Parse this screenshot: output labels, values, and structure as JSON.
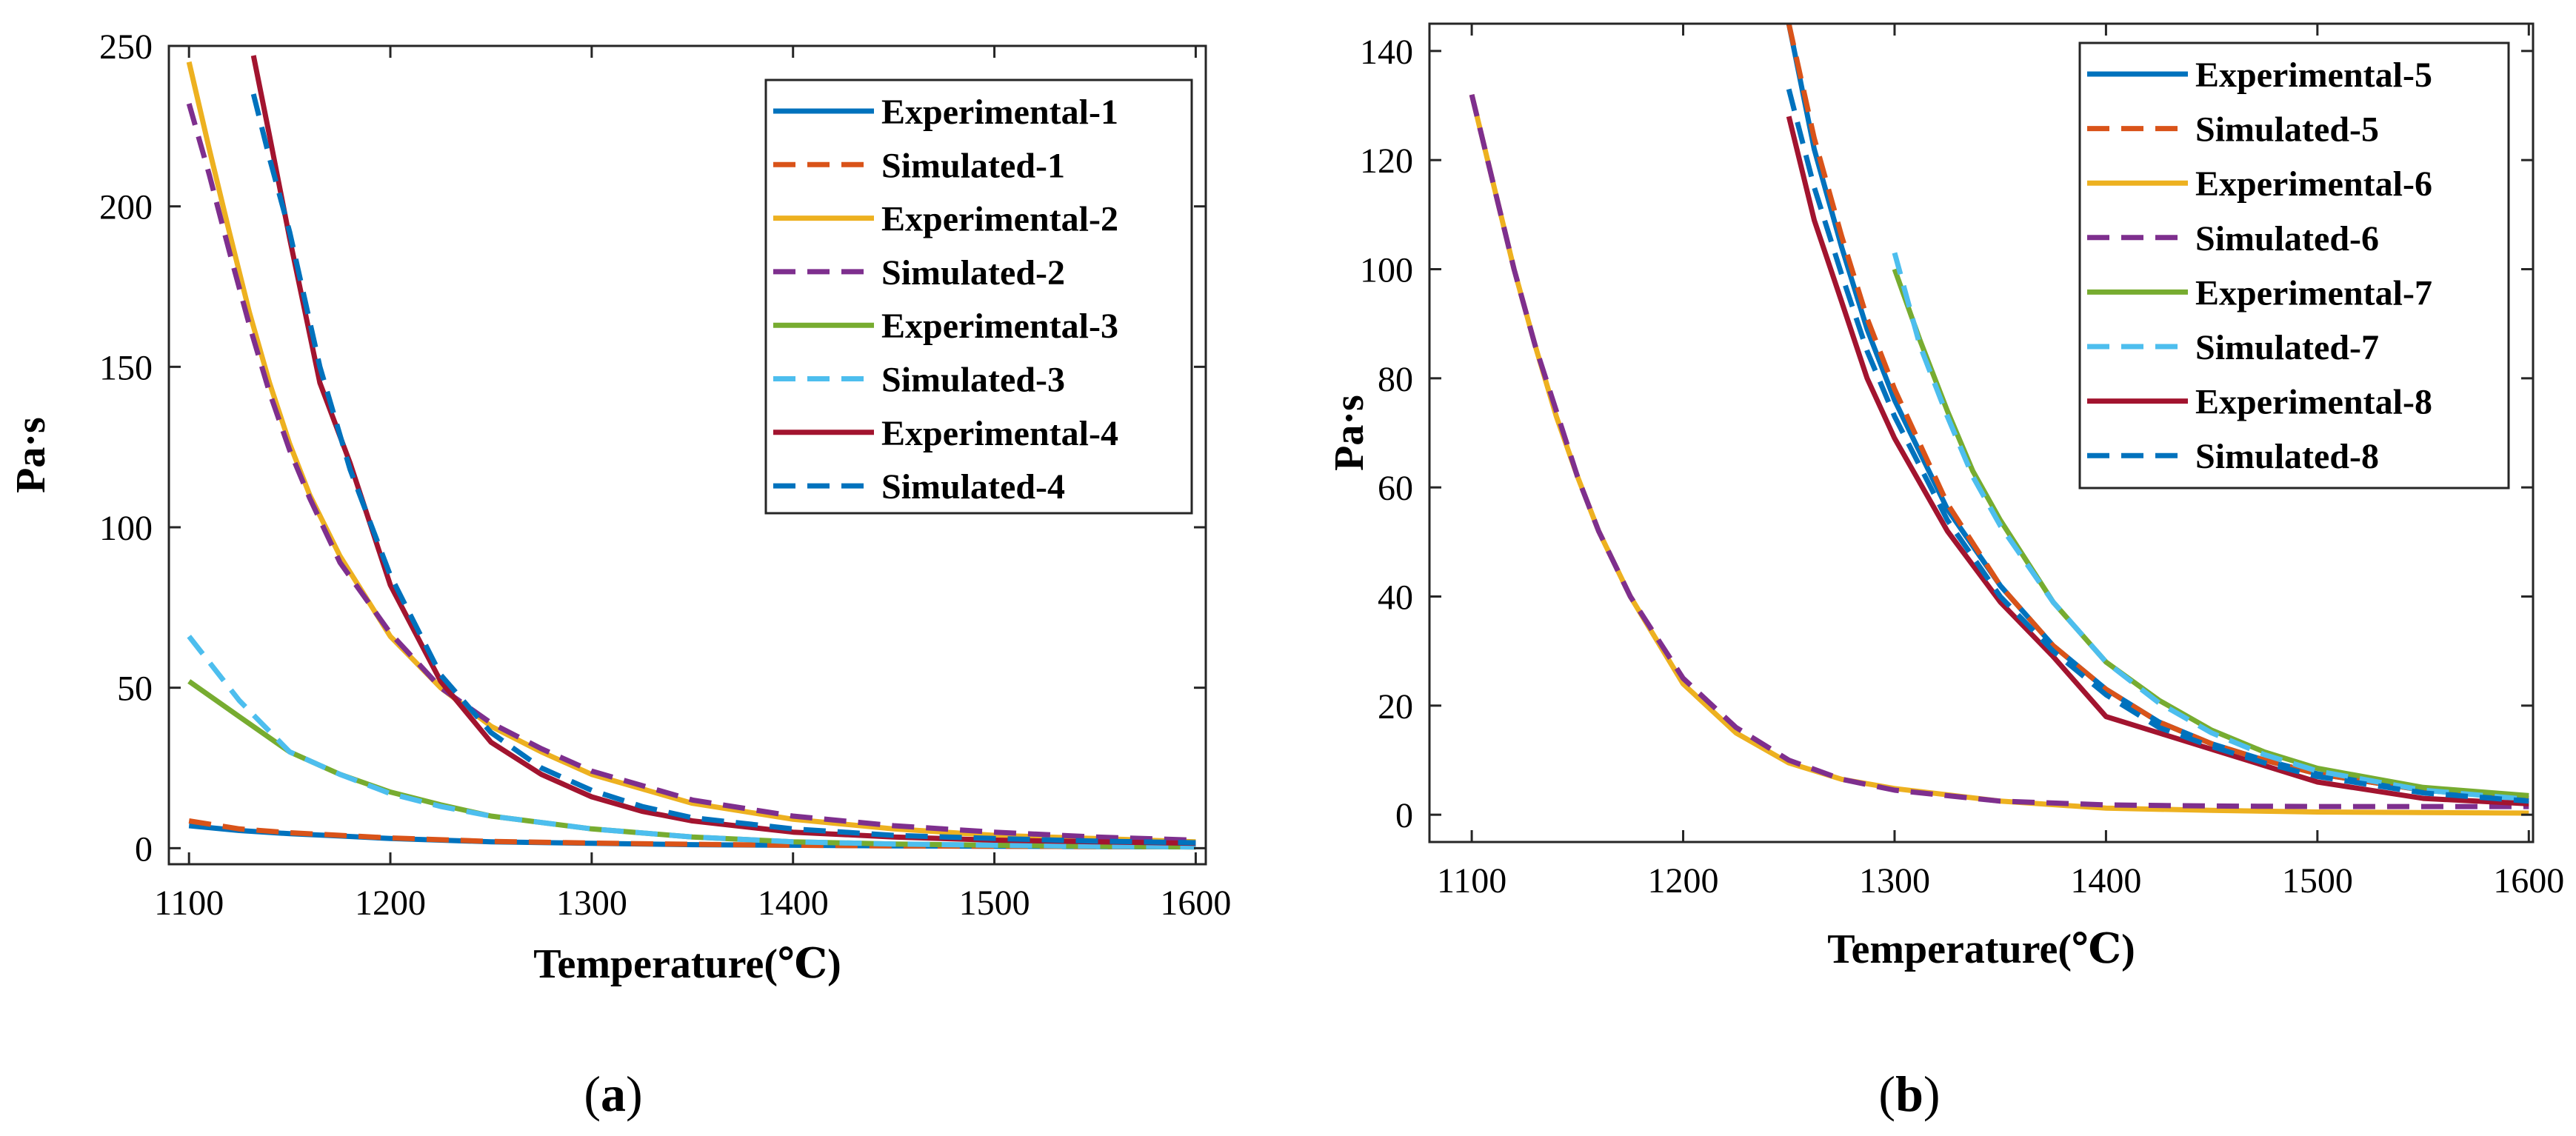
{
  "figure": {
    "panel_labels": [
      {
        "open": "(",
        "letter": "a",
        "close": ")"
      },
      {
        "open": "(",
        "letter": "b",
        "close": ")"
      }
    ]
  },
  "chart_data": [
    {
      "type": "line",
      "panel": "a",
      "title": "",
      "xlabel": "Temperature(℃)",
      "ylabel": "Pa·s",
      "xlim": [
        1090,
        1605
      ],
      "ylim": [
        -5,
        250
      ],
      "xticks": [
        1100,
        1200,
        1300,
        1400,
        1500,
        1600
      ],
      "yticks": [
        0,
        50,
        100,
        150,
        200,
        250
      ],
      "legend_position": "top-right",
      "series": [
        {
          "name": "Experimental-1",
          "color": "#0072BD",
          "dash": "solid",
          "x": [
            1100,
            1125,
            1150,
            1175,
            1200,
            1250,
            1300,
            1350,
            1400,
            1450,
            1500,
            1550,
            1600
          ],
          "y": [
            7,
            5.5,
            4.5,
            3.8,
            3,
            2,
            1.5,
            1.1,
            0.9,
            0.7,
            0.6,
            0.5,
            0.4
          ]
        },
        {
          "name": "Simulated-1",
          "color": "#D95319",
          "dash": "dash",
          "x": [
            1100,
            1125,
            1150,
            1175,
            1200,
            1250,
            1300,
            1350,
            1400,
            1450,
            1500,
            1550,
            1600
          ],
          "y": [
            8.5,
            6,
            4.8,
            4,
            3.2,
            2.1,
            1.6,
            1.2,
            0.9,
            0.7,
            0.6,
            0.5,
            0.4
          ]
        },
        {
          "name": "Experimental-2",
          "color": "#EDB120",
          "dash": "solid",
          "x": [
            1100,
            1110,
            1120,
            1130,
            1140,
            1150,
            1160,
            1175,
            1200,
            1225,
            1250,
            1275,
            1300,
            1350,
            1400,
            1450,
            1500,
            1550,
            1600
          ],
          "y": [
            245,
            218,
            192,
            167,
            145,
            126,
            110,
            91,
            66,
            50,
            38,
            30,
            23,
            14,
            9,
            6,
            4,
            3,
            2
          ]
        },
        {
          "name": "Simulated-2",
          "color": "#7E2F8E",
          "dash": "dash",
          "x": [
            1100,
            1110,
            1120,
            1130,
            1140,
            1150,
            1160,
            1175,
            1200,
            1225,
            1250,
            1275,
            1300,
            1350,
            1400,
            1450,
            1500,
            1550,
            1600
          ],
          "y": [
            232,
            210,
            186,
            163,
            142,
            124,
            109,
            89,
            67,
            50,
            39,
            31,
            24,
            15,
            10,
            7,
            5,
            3.5,
            2.5
          ]
        },
        {
          "name": "Experimental-3",
          "color": "#77AC30",
          "dash": "solid",
          "x": [
            1100,
            1125,
            1150,
            1175,
            1200,
            1225,
            1250,
            1300,
            1350,
            1400,
            1450,
            1500,
            1550,
            1600
          ],
          "y": [
            52,
            41,
            30,
            23,
            17.5,
            13.5,
            10,
            6,
            3.5,
            2,
            1.3,
            0.9,
            0.6,
            0.4
          ]
        },
        {
          "name": "Simulated-3",
          "color": "#4DBEEE",
          "dash": "dash",
          "x": [
            1100,
            1125,
            1150,
            1175,
            1200,
            1225,
            1250,
            1300,
            1350,
            1400,
            1450,
            1500,
            1550,
            1600
          ],
          "y": [
            66,
            46,
            30,
            23,
            17,
            13,
            10,
            6,
            3.5,
            2,
            1.3,
            0.9,
            0.6,
            0.4
          ]
        },
        {
          "name": "Experimental-4",
          "color": "#A2142F",
          "dash": "solid",
          "x": [
            1132,
            1140,
            1150,
            1165,
            1180,
            1200,
            1225,
            1250,
            1275,
            1300,
            1325,
            1350,
            1400,
            1450,
            1500,
            1550,
            1600
          ],
          "y": [
            247,
            222,
            190,
            145,
            120,
            82,
            52,
            33,
            23,
            16,
            11.5,
            8.5,
            5,
            3.5,
            2.5,
            2,
            1.5
          ]
        },
        {
          "name": "Simulated-4",
          "color": "#0072BD",
          "dash": "dash",
          "x": [
            1132,
            1140,
            1150,
            1165,
            1180,
            1200,
            1225,
            1250,
            1275,
            1300,
            1325,
            1350,
            1400,
            1450,
            1500,
            1550,
            1600
          ],
          "y": [
            235,
            215,
            192,
            150,
            118,
            85,
            54,
            36,
            25,
            18,
            13,
            9.5,
            6,
            4,
            3,
            2.2,
            1.7
          ]
        }
      ]
    },
    {
      "type": "line",
      "panel": "b",
      "title": "",
      "xlabel": "Temperature(℃)",
      "ylabel": "Pa·s",
      "xlim": [
        1080,
        1602
      ],
      "ylim": [
        -5,
        145
      ],
      "xticks": [
        1100,
        1200,
        1300,
        1400,
        1500,
        1600
      ],
      "yticks": [
        0,
        20,
        40,
        60,
        80,
        100,
        120,
        140
      ],
      "legend_position": "top-right",
      "series": [
        {
          "name": "Experimental-5",
          "color": "#0072BD",
          "dash": "solid",
          "x": [
            1250,
            1262,
            1275,
            1287,
            1300,
            1325,
            1350,
            1375,
            1400,
            1425,
            1450,
            1475,
            1500,
            1550,
            1600
          ],
          "y": [
            145,
            122,
            104,
            89,
            76,
            56,
            42,
            31,
            23,
            17,
            13,
            10,
            7.5,
            4.5,
            3
          ]
        },
        {
          "name": "Simulated-5",
          "color": "#D95319",
          "dash": "dash",
          "x": [
            1250,
            1262,
            1275,
            1287,
            1300,
            1325,
            1350,
            1375,
            1400,
            1425,
            1450,
            1475,
            1500,
            1550,
            1600
          ],
          "y": [
            145,
            124,
            106,
            91,
            78,
            57,
            42,
            31,
            23,
            17,
            13,
            10,
            7.5,
            4.5,
            3
          ]
        },
        {
          "name": "Experimental-6",
          "color": "#EDB120",
          "dash": "solid",
          "x": [
            1100,
            1110,
            1120,
            1130,
            1140,
            1150,
            1160,
            1175,
            1200,
            1225,
            1250,
            1275,
            1300,
            1350,
            1400,
            1450,
            1500,
            1550,
            1600
          ],
          "y": [
            132,
            116,
            100,
            86,
            73,
            62,
            52,
            40,
            24,
            15,
            9.5,
            6.5,
            4.8,
            2.5,
            1.2,
            0.8,
            0.5,
            0.4,
            0.3
          ]
        },
        {
          "name": "Simulated-6",
          "color": "#7E2F8E",
          "dash": "dash",
          "x": [
            1100,
            1110,
            1120,
            1130,
            1140,
            1150,
            1160,
            1175,
            1200,
            1225,
            1250,
            1275,
            1300,
            1350,
            1400,
            1450,
            1500,
            1550,
            1600
          ],
          "y": [
            132,
            116,
            100,
            86,
            74,
            62,
            52,
            40,
            25,
            16,
            10,
            6.5,
            4.5,
            2.5,
            1.8,
            1.6,
            1.5,
            1.5,
            1.5
          ]
        },
        {
          "name": "Experimental-7",
          "color": "#77AC30",
          "dash": "solid",
          "x": [
            1300,
            1312,
            1325,
            1337,
            1350,
            1375,
            1400,
            1425,
            1450,
            1475,
            1500,
            1550,
            1600
          ],
          "y": [
            100,
            87,
            74,
            63,
            54,
            39,
            28,
            21,
            15.5,
            11.5,
            8.5,
            5,
            3.5
          ]
        },
        {
          "name": "Simulated-7",
          "color": "#4DBEEE",
          "dash": "dash",
          "x": [
            1300,
            1312,
            1325,
            1337,
            1350,
            1375,
            1400,
            1425,
            1450,
            1475,
            1500,
            1550,
            1600
          ],
          "y": [
            103,
            86,
            73,
            62,
            53,
            39,
            28,
            20.5,
            15,
            11,
            8,
            4.5,
            2.8
          ]
        },
        {
          "name": "Experimental-8",
          "color": "#A2142F",
          "dash": "solid",
          "x": [
            1250,
            1262,
            1275,
            1287,
            1300,
            1325,
            1350,
            1375,
            1400,
            1425,
            1450,
            1475,
            1500,
            1550,
            1600
          ],
          "y": [
            128,
            109,
            94,
            80,
            69,
            52,
            39,
            29,
            18,
            15,
            12,
            9,
            6,
            3,
            2
          ]
        },
        {
          "name": "Simulated-8",
          "color": "#0072BD",
          "dash": "dash",
          "x": [
            1250,
            1262,
            1275,
            1287,
            1300,
            1325,
            1350,
            1375,
            1400,
            1425,
            1450,
            1475,
            1500,
            1550,
            1600
          ],
          "y": [
            133,
            115,
            99,
            85,
            73,
            54,
            40,
            30,
            22,
            16,
            12.5,
            9.5,
            7,
            4,
            2.5
          ]
        }
      ]
    }
  ]
}
